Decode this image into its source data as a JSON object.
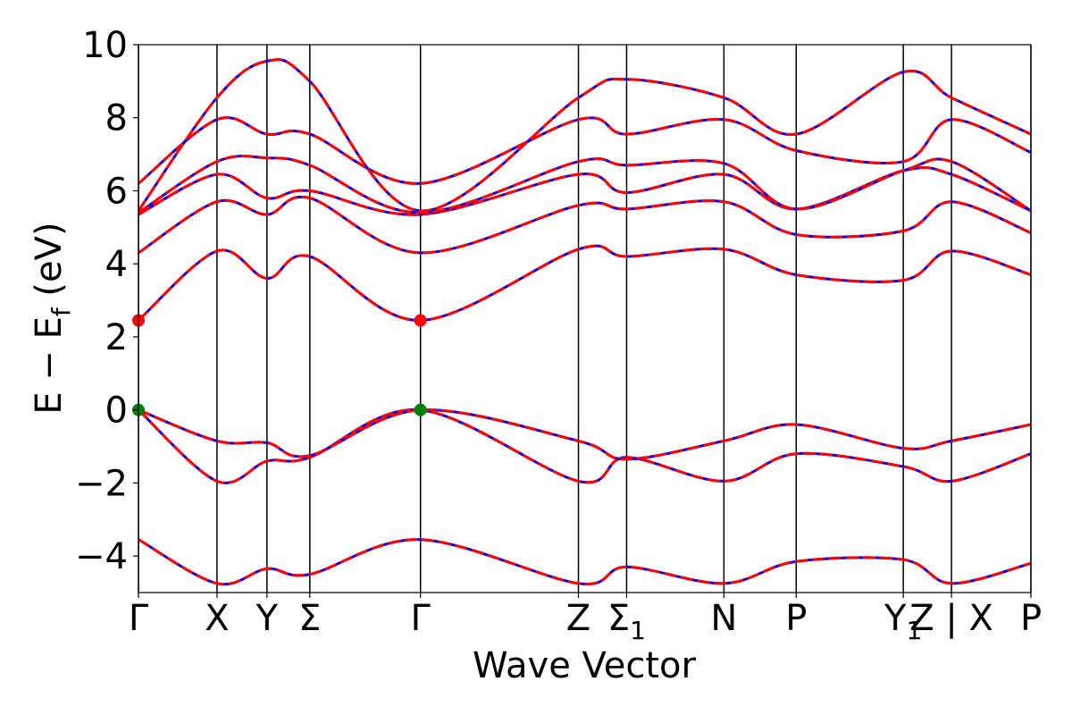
{
  "chart_data": {
    "type": "line",
    "title": "",
    "xlabel": "Wave Vector",
    "ylabel": "E − E_f (eV)",
    "ylabel_parts": {
      "main": "E − E",
      "sub": "f",
      "unit": " (eV)"
    },
    "ylim": [
      -5,
      10
    ],
    "yticks": [
      -4,
      -2,
      0,
      2,
      4,
      6,
      8,
      10
    ],
    "ytick_labels": [
      "−4",
      "−2",
      "0",
      "2",
      "4",
      "6",
      "8",
      "10"
    ],
    "grid": false,
    "kpoints": [
      {
        "label": "Γ",
        "sub": "",
        "x": 0.0
      },
      {
        "label": "X",
        "sub": "",
        "x": 0.88
      },
      {
        "label": "Y",
        "sub": "",
        "x": 1.44
      },
      {
        "label": "Σ",
        "sub": "",
        "x": 1.92
      },
      {
        "label": "Γ",
        "sub": "",
        "x": 3.16
      },
      {
        "label": "Z",
        "sub": "",
        "x": 4.93
      },
      {
        "label": "Σ",
        "sub": "1",
        "x": 5.47
      },
      {
        "label": "N",
        "sub": "",
        "x": 6.56
      },
      {
        "label": "P",
        "sub": "",
        "x": 7.37
      },
      {
        "label": "Y",
        "sub": "1",
        "x": 8.57
      },
      {
        "label": "Z | X",
        "sub": "",
        "x": 9.11
      },
      {
        "label": "P",
        "sub": "",
        "x": 10.0
      }
    ],
    "series_colors": {
      "solid": "#0000ff",
      "dashed": "#ff0000"
    },
    "markers": [
      {
        "x": 0.0,
        "y": 2.45,
        "color": "#ff0000",
        "kind": "CBM"
      },
      {
        "x": 3.16,
        "y": 2.45,
        "color": "#ff0000",
        "kind": "CBM"
      },
      {
        "x": 0.0,
        "y": 0.0,
        "color": "#008000",
        "kind": "VBM"
      },
      {
        "x": 3.16,
        "y": 0.0,
        "color": "#008000",
        "kind": "VBM"
      }
    ],
    "bands": [
      {
        "x": [
          0,
          0.88,
          1.44,
          1.92,
          3.16,
          4.93,
          5.47,
          6.56,
          7.37,
          8.57,
          9.11,
          10
        ],
        "y": [
          -3.55,
          -4.75,
          -4.35,
          -4.5,
          -3.55,
          -4.75,
          -4.3,
          -4.75,
          -4.15,
          -4.1,
          -4.75,
          -4.2
        ]
      },
      {
        "x": [
          0,
          0.88,
          1.44,
          1.92,
          3.16,
          4.93,
          5.47,
          6.56,
          7.37,
          8.57,
          9.11,
          10
        ],
        "y": [
          0.0,
          -1.95,
          -1.4,
          -1.3,
          0.0,
          -1.95,
          -1.3,
          -1.95,
          -1.2,
          -1.55,
          -1.95,
          -1.2
        ]
      },
      {
        "x": [
          0,
          0.88,
          1.44,
          1.92,
          3.16,
          4.93,
          5.47,
          6.56,
          7.37,
          8.57,
          9.11,
          10
        ],
        "y": [
          0.0,
          -0.85,
          -0.9,
          -1.25,
          0.0,
          -0.85,
          -1.35,
          -0.85,
          -0.4,
          -1.05,
          -0.85,
          -0.4
        ]
      },
      {
        "x": [
          0,
          0.88,
          1.44,
          1.92,
          3.16,
          4.93,
          5.47,
          6.56,
          7.37,
          8.57,
          9.11,
          10
        ],
        "y": [
          2.45,
          4.35,
          3.6,
          4.2,
          2.45,
          4.4,
          4.2,
          4.4,
          3.7,
          3.55,
          4.35,
          3.7
        ]
      },
      {
        "x": [
          0,
          0.88,
          1.44,
          1.92,
          3.16,
          4.93,
          5.47,
          6.56,
          7.37,
          8.57,
          9.11,
          10
        ],
        "y": [
          4.3,
          5.7,
          5.35,
          5.8,
          4.3,
          5.6,
          5.5,
          5.7,
          4.8,
          4.9,
          5.7,
          4.85
        ]
      },
      {
        "x": [
          0,
          0.88,
          1.44,
          1.92,
          3.16,
          4.93,
          5.47,
          6.56,
          7.37,
          8.57,
          9.11,
          10
        ],
        "y": [
          5.35,
          6.45,
          5.8,
          6.0,
          5.35,
          6.45,
          5.95,
          6.45,
          5.5,
          6.55,
          6.45,
          5.45
        ]
      },
      {
        "x": [
          0,
          0.88,
          1.44,
          1.92,
          3.16,
          4.93,
          5.47,
          6.56,
          7.37,
          8.57,
          9.11,
          10
        ],
        "y": [
          5.4,
          6.8,
          6.9,
          6.7,
          5.4,
          6.8,
          6.7,
          6.75,
          5.5,
          6.55,
          6.8,
          5.45
        ]
      },
      {
        "x": [
          0,
          0.88,
          1.44,
          1.92,
          3.16,
          4.93,
          5.47,
          6.56,
          7.37,
          8.57,
          9.11,
          10
        ],
        "y": [
          6.2,
          7.95,
          7.55,
          7.55,
          6.2,
          7.95,
          7.55,
          7.95,
          7.1,
          6.8,
          7.95,
          7.05
        ]
      },
      {
        "x": [
          0,
          0.88,
          1.44,
          1.92,
          3.16,
          4.93,
          5.47,
          6.56,
          7.37,
          8.57,
          9.11,
          10
        ],
        "y": [
          5.45,
          8.55,
          9.55,
          9.0,
          5.45,
          8.55,
          9.05,
          8.55,
          7.55,
          9.25,
          8.55,
          7.55
        ]
      }
    ]
  }
}
